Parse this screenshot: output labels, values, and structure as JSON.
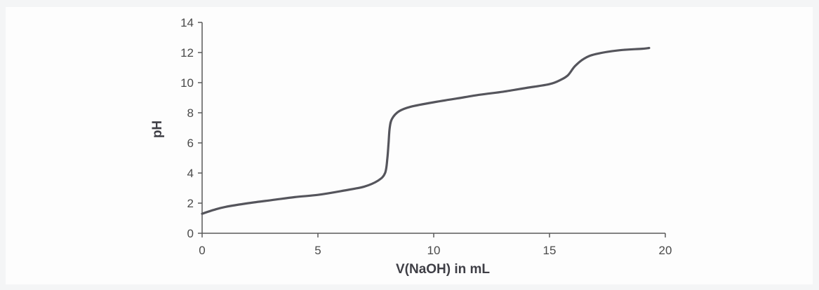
{
  "chart_data": {
    "type": "line",
    "title": "",
    "xlabel": "V(NaOH) in mL",
    "ylabel": "pH",
    "xlim": [
      0,
      20
    ],
    "ylim": [
      0,
      14
    ],
    "x_ticks": [
      "0",
      "5",
      "10",
      "15",
      "20"
    ],
    "y_ticks": [
      "0",
      "2",
      "4",
      "6",
      "8",
      "10",
      "12",
      "14"
    ],
    "grid": false,
    "legend": "none",
    "line_color": "#55555c",
    "axis_color": "#5a5a5a",
    "series": [
      {
        "values": [
          [
            0,
            1.3
          ],
          [
            0.5,
            1.55
          ],
          [
            1,
            1.75
          ],
          [
            2,
            2.0
          ],
          [
            3,
            2.2
          ],
          [
            4,
            2.4
          ],
          [
            5,
            2.55
          ],
          [
            6,
            2.8
          ],
          [
            7,
            3.1
          ],
          [
            7.6,
            3.5
          ],
          [
            7.9,
            4.0
          ],
          [
            8.0,
            5.0
          ],
          [
            8.05,
            6.0
          ],
          [
            8.1,
            7.0
          ],
          [
            8.2,
            7.6
          ],
          [
            8.5,
            8.1
          ],
          [
            9,
            8.4
          ],
          [
            10,
            8.7
          ],
          [
            11,
            8.95
          ],
          [
            12,
            9.2
          ],
          [
            13,
            9.4
          ],
          [
            14,
            9.65
          ],
          [
            15,
            9.9
          ],
          [
            15.5,
            10.2
          ],
          [
            15.8,
            10.5
          ],
          [
            16.1,
            11.1
          ],
          [
            16.5,
            11.6
          ],
          [
            17,
            11.9
          ],
          [
            18,
            12.15
          ],
          [
            19,
            12.25
          ],
          [
            19.3,
            12.3
          ]
        ]
      }
    ]
  }
}
